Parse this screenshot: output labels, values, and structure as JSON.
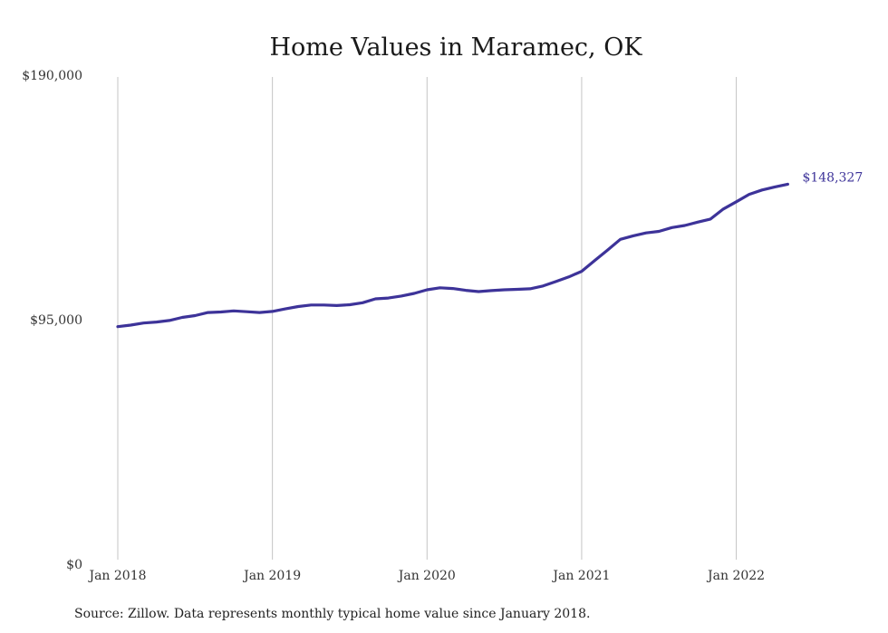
{
  "chart_data": {
    "type": "line",
    "title": "Home Values in Maramec, OK",
    "source_note": "Source: Zillow. Data represents monthly typical home value since January 2018.",
    "xlabel": "",
    "ylabel": "",
    "y_ticks": [
      {
        "value": 0,
        "label": "$0"
      },
      {
        "value": 95000,
        "label": "$95,000"
      },
      {
        "value": 190000,
        "label": "$190,000"
      }
    ],
    "ylim": [
      0,
      190000
    ],
    "x_ticks": [
      {
        "value": "2018-01",
        "label": "Jan 2018"
      },
      {
        "value": "2019-01",
        "label": "Jan 2019"
      },
      {
        "value": "2020-01",
        "label": "Jan 2020"
      },
      {
        "value": "2021-01",
        "label": "Jan 2021"
      },
      {
        "value": "2022-01",
        "label": "Jan 2022"
      }
    ],
    "xlim": [
      "2018-01",
      "2022-06"
    ],
    "grid": {
      "vertical": true,
      "horizontal": false
    },
    "line_color": "#3d3399",
    "end_label": "$148,327",
    "series": [
      {
        "x": [
          "2018-01",
          "2018-02",
          "2018-03",
          "2018-04",
          "2018-05",
          "2018-06",
          "2018-07",
          "2018-08",
          "2018-09",
          "2018-10",
          "2018-11",
          "2018-12",
          "2019-01",
          "2019-02",
          "2019-03",
          "2019-04",
          "2019-05",
          "2019-06",
          "2019-07",
          "2019-08",
          "2019-09",
          "2019-10",
          "2019-11",
          "2019-12",
          "2020-01",
          "2020-02",
          "2020-03",
          "2020-04",
          "2020-05",
          "2020-06",
          "2020-07",
          "2020-08",
          "2020-09",
          "2020-10",
          "2020-11",
          "2020-12",
          "2021-01",
          "2021-02",
          "2021-03",
          "2021-04",
          "2021-05",
          "2021-06",
          "2021-07",
          "2021-08",
          "2021-09",
          "2021-10",
          "2021-11",
          "2021-12",
          "2022-01",
          "2022-02",
          "2022-03",
          "2022-04",
          "2022-05"
        ],
        "values": [
          93000,
          93600,
          94400,
          94800,
          95400,
          96600,
          97300,
          98500,
          98700,
          99100,
          98800,
          98500,
          98900,
          99900,
          100800,
          101400,
          101400,
          101200,
          101500,
          102300,
          103800,
          104100,
          104900,
          105900,
          107300,
          108100,
          107800,
          107100,
          106600,
          107000,
          107300,
          107500,
          107700,
          108800,
          110500,
          112300,
          114500,
          118600,
          122700,
          126900,
          128300,
          129400,
          130000,
          131500,
          132300,
          133600,
          134800,
          138700,
          141500,
          144400,
          146100,
          147300,
          148327
        ]
      }
    ]
  }
}
